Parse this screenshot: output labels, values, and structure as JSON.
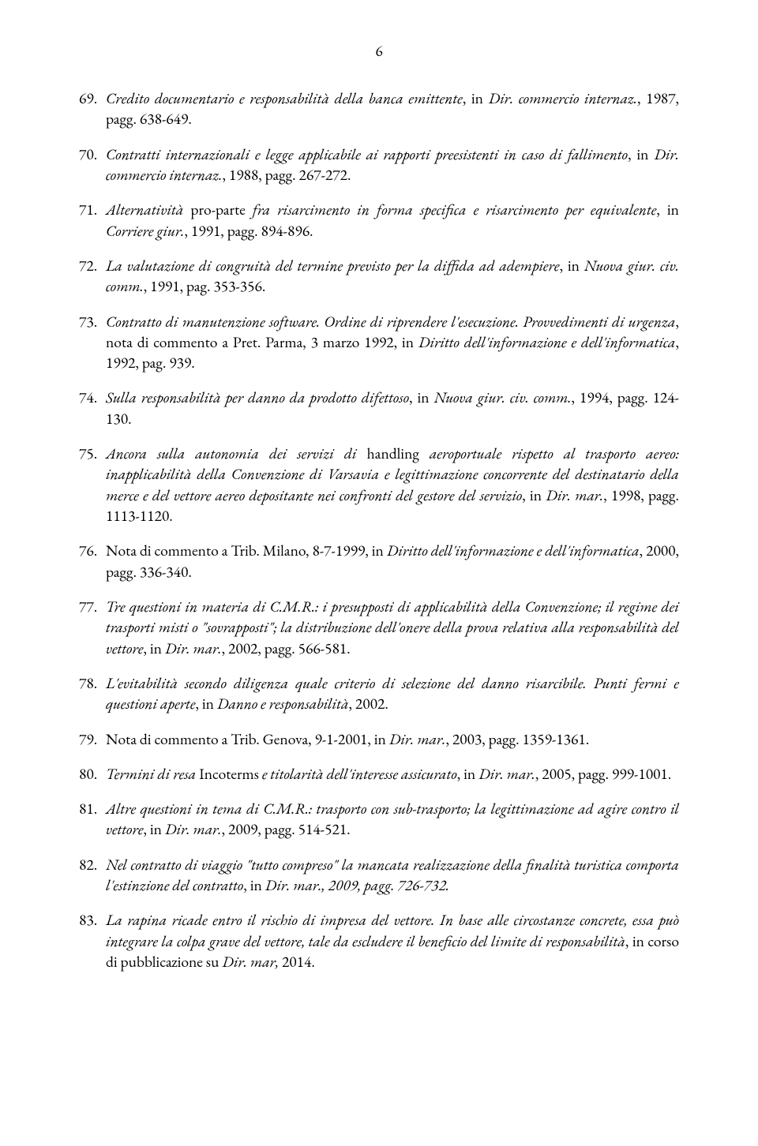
{
  "page_number": "6",
  "entries": [
    {
      "num": "69.",
      "segments": [
        {
          "t": "Credito documentario e responsabilità della banca emittente",
          "i": true
        },
        {
          "t": ", in ",
          "i": false
        },
        {
          "t": "Dir. commercio internaz.",
          "i": true
        },
        {
          "t": ", 1987, pagg. 638-649.",
          "i": false
        }
      ]
    },
    {
      "num": "70.",
      "segments": [
        {
          "t": "Contratti internazionali e legge applicabile ai rapporti preesistenti in caso di fallimento",
          "i": true
        },
        {
          "t": ", in ",
          "i": false
        },
        {
          "t": "Dir. commercio internaz.",
          "i": true
        },
        {
          "t": ", 1988, pagg. 267-272.",
          "i": false
        }
      ]
    },
    {
      "num": "71.",
      "segments": [
        {
          "t": "Alternatività",
          "i": true
        },
        {
          "t": " pro-parte ",
          "i": false
        },
        {
          "t": "fra risarcimento in forma specifica e risarcimento per equivalente",
          "i": true
        },
        {
          "t": ", in ",
          "i": false
        },
        {
          "t": "Corriere giur.",
          "i": true
        },
        {
          "t": ", 1991, pagg. 894-896.",
          "i": false
        }
      ]
    },
    {
      "num": "72.",
      "segments": [
        {
          "t": "La valutazione di congruità del termine previsto per la diffida ad adempiere",
          "i": true
        },
        {
          "t": ", in ",
          "i": false
        },
        {
          "t": "Nuova giur. civ. comm.",
          "i": true
        },
        {
          "t": ", 1991, pag. 353-356.",
          "i": false
        }
      ]
    },
    {
      "num": "73.",
      "segments": [
        {
          "t": "Contratto di manutenzione software. Ordine di riprendere l'esecuzione. Provvedimenti di urgenza",
          "i": true
        },
        {
          "t": ", nota di commento a Pret. Parma, 3 marzo 1992, in ",
          "i": false
        },
        {
          "t": "Diritto dell'informazione e dell'informatica",
          "i": true
        },
        {
          "t": ", 1992, pag. 939.",
          "i": false
        }
      ]
    },
    {
      "num": "74.",
      "segments": [
        {
          "t": "Sulla responsabilità per danno da prodotto difettoso",
          "i": true
        },
        {
          "t": ", in ",
          "i": false
        },
        {
          "t": "Nuova giur. civ. comm.",
          "i": true
        },
        {
          "t": ", 1994, pagg. 124-130.",
          "i": false
        }
      ]
    },
    {
      "num": "75.",
      "segments": [
        {
          "t": "Ancora sulla autonomia dei servizi di",
          "i": true
        },
        {
          "t": " handling ",
          "i": false
        },
        {
          "t": "aeroportuale rispetto al trasporto aereo: inapplicabilità della Convenzione di Varsavia e legittimazione concorrente del destinatario della merce e del vettore aereo depositante nei confronti del gestore del servizio",
          "i": true
        },
        {
          "t": ", in ",
          "i": false
        },
        {
          "t": "Dir. mar.",
          "i": true
        },
        {
          "t": ", 1998, pagg. 1113-1120.",
          "i": false
        }
      ]
    },
    {
      "num": "76.",
      "segments": [
        {
          "t": "Nota di commento a Trib. Milano, 8-7-1999, in ",
          "i": false
        },
        {
          "t": "Diritto dell'informazione e dell'informatica",
          "i": true
        },
        {
          "t": ", 2000, pagg. 336-340.",
          "i": false
        }
      ]
    },
    {
      "num": "77.",
      "segments": [
        {
          "t": "Tre questioni in materia di C.M.R.: i presupposti di applicabilità della Convenzione; il regime dei trasporti misti o \"sovrapposti\"; la distribuzione dell'onere della prova relativa alla responsabilità del vettore",
          "i": true
        },
        {
          "t": ", in ",
          "i": false
        },
        {
          "t": "Dir. mar.",
          "i": true
        },
        {
          "t": ", 2002, pagg. 566-581.",
          "i": false
        }
      ]
    },
    {
      "num": "78.",
      "segments": [
        {
          "t": "L'evitabilità secondo diligenza quale criterio di selezione del danno risarcibile. Punti fermi e questioni aperte",
          "i": true
        },
        {
          "t": ", in ",
          "i": false
        },
        {
          "t": "Danno e responsabilità",
          "i": true
        },
        {
          "t": ", 2002.",
          "i": false
        }
      ]
    },
    {
      "num": "79.",
      "segments": [
        {
          "t": "Nota di commento a Trib. Genova, 9-1-2001, in ",
          "i": false
        },
        {
          "t": "Dir. mar.",
          "i": true
        },
        {
          "t": ", 2003, pagg. 1359-1361.",
          "i": false
        }
      ]
    },
    {
      "num": "80.",
      "segments": [
        {
          "t": "Termini di resa",
          "i": true
        },
        {
          "t": " Incoterms ",
          "i": false
        },
        {
          "t": "e titolarità dell'interesse assicurato",
          "i": true
        },
        {
          "t": ", in ",
          "i": false
        },
        {
          "t": "Dir. mar.",
          "i": true
        },
        {
          "t": ", 2005, pagg. 999-1001.",
          "i": false
        }
      ]
    },
    {
      "num": "81.",
      "segments": [
        {
          "t": "Altre questioni in tema di C.M.R.: trasporto con sub-trasporto; la legittimazione ad agire contro il vettore",
          "i": true
        },
        {
          "t": ", in ",
          "i": false
        },
        {
          "t": "Dir. mar.",
          "i": true
        },
        {
          "t": ", 2009, pagg. 514-521.",
          "i": false
        }
      ]
    },
    {
      "num": "82.",
      "segments": [
        {
          "t": "Nel contratto di viaggio \"tutto compreso\" la mancata realizzazione della finalità turistica comporta l'estinzione del contratto",
          "i": true
        },
        {
          "t": ", in ",
          "i": false
        },
        {
          "t": "Dir. mar., 2009, pagg. 726-732.",
          "i": true
        }
      ]
    },
    {
      "num": "83.",
      "segments": [
        {
          "t": "La rapina ricade entro il rischio di impresa del vettore. In base alle circostanze concrete, essa può integrare la colpa grave del vettore, tale da escludere il beneficio del limite di responsabilità",
          "i": true
        },
        {
          "t": ", in corso di pubblicazione su ",
          "i": false
        },
        {
          "t": "Dir. mar,",
          "i": true
        },
        {
          "t": " 2014.",
          "i": false
        }
      ]
    }
  ]
}
